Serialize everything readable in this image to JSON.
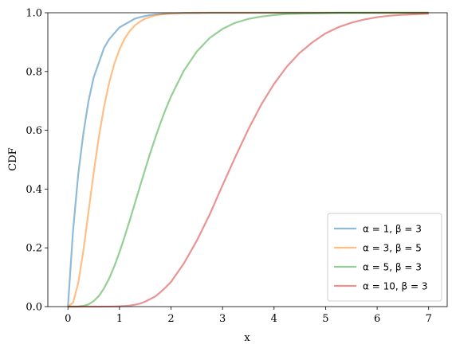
{
  "chart_data": {
    "type": "line",
    "x_label": "x",
    "y_label": "CDF",
    "x": [
      0,
      0.1,
      0.2,
      0.3,
      0.4,
      0.5,
      0.6,
      0.7,
      0.8,
      0.9,
      1.0,
      1.1,
      1.2,
      1.3,
      1.4,
      1.5,
      1.6,
      1.7,
      1.8,
      1.9,
      2.0,
      2.25,
      2.5,
      2.75,
      3.0,
      3.25,
      3.5,
      3.75,
      4.0,
      4.25,
      4.5,
      4.75,
      5.0,
      5.25,
      5.5,
      5.75,
      6.0,
      6.25,
      6.5,
      6.75,
      7.0
    ],
    "series": [
      {
        "name": "α = 1, β = 3",
        "color": "#1f77b4",
        "values": [
          0,
          0.26,
          0.45,
          0.59,
          0.7,
          0.78,
          0.83,
          0.88,
          0.91,
          0.93,
          0.95,
          0.96,
          0.97,
          0.98,
          0.985,
          0.989,
          0.992,
          0.994,
          0.995,
          0.997,
          0.998,
          0.999,
          0.999,
          1,
          1,
          1,
          1,
          1,
          1,
          1,
          1,
          1,
          1,
          1,
          1,
          1,
          1,
          1,
          1,
          1,
          1
        ]
      },
      {
        "name": "α = 3, β = 5",
        "color": "#ff7f0e",
        "values": [
          0,
          0.014,
          0.08,
          0.191,
          0.323,
          0.456,
          0.577,
          0.679,
          0.762,
          0.826,
          0.875,
          0.912,
          0.938,
          0.957,
          0.97,
          0.98,
          0.986,
          0.991,
          0.994,
          0.996,
          0.997,
          0.999,
          1,
          1,
          1,
          1,
          1,
          1,
          1,
          1,
          1,
          1,
          1,
          1,
          1,
          1,
          1,
          1,
          1,
          1,
          1
        ]
      },
      {
        "name": "α = 5, β = 3",
        "color": "#2ca02c",
        "values": [
          0,
          0,
          0.0004,
          0.0023,
          0.0077,
          0.019,
          0.036,
          0.062,
          0.096,
          0.137,
          0.185,
          0.238,
          0.294,
          0.352,
          0.41,
          0.468,
          0.524,
          0.577,
          0.627,
          0.673,
          0.715,
          0.803,
          0.868,
          0.914,
          0.945,
          0.966,
          0.979,
          0.987,
          0.992,
          0.996,
          0.997,
          0.998,
          0.999,
          1,
          1,
          1,
          1,
          1,
          1,
          1,
          1
        ]
      },
      {
        "name": "α = 10, β = 3",
        "color": "#d62728",
        "values": [
          0,
          0,
          0,
          0,
          0,
          0,
          0,
          0.0001,
          0.0002,
          0.0005,
          0.0011,
          0.002,
          0.0036,
          0.0063,
          0.0103,
          0.017,
          0.026,
          0.035,
          0.05,
          0.066,
          0.084,
          0.147,
          0.224,
          0.313,
          0.413,
          0.51,
          0.603,
          0.687,
          0.758,
          0.817,
          0.864,
          0.9,
          0.93,
          0.951,
          0.966,
          0.977,
          0.985,
          0.99,
          0.993,
          0.995,
          0.997
        ]
      }
    ],
    "xlim": [
      -0.39,
      7.36
    ],
    "ylim": [
      0,
      1
    ],
    "xticks": [
      0,
      1,
      2,
      3,
      4,
      5,
      6,
      7
    ],
    "yticks": [
      {
        "value": 0,
        "label": "0.0"
      },
      {
        "value": 0.2,
        "label": "0.2"
      },
      {
        "value": 0.4,
        "label": "0.4"
      },
      {
        "value": 0.6,
        "label": "0.6"
      },
      {
        "value": 0.8,
        "label": "0.8"
      },
      {
        "value": 1,
        "label": "1.0"
      }
    ],
    "line_alpha": 0.5,
    "legend": "lower right",
    "grid": false
  }
}
